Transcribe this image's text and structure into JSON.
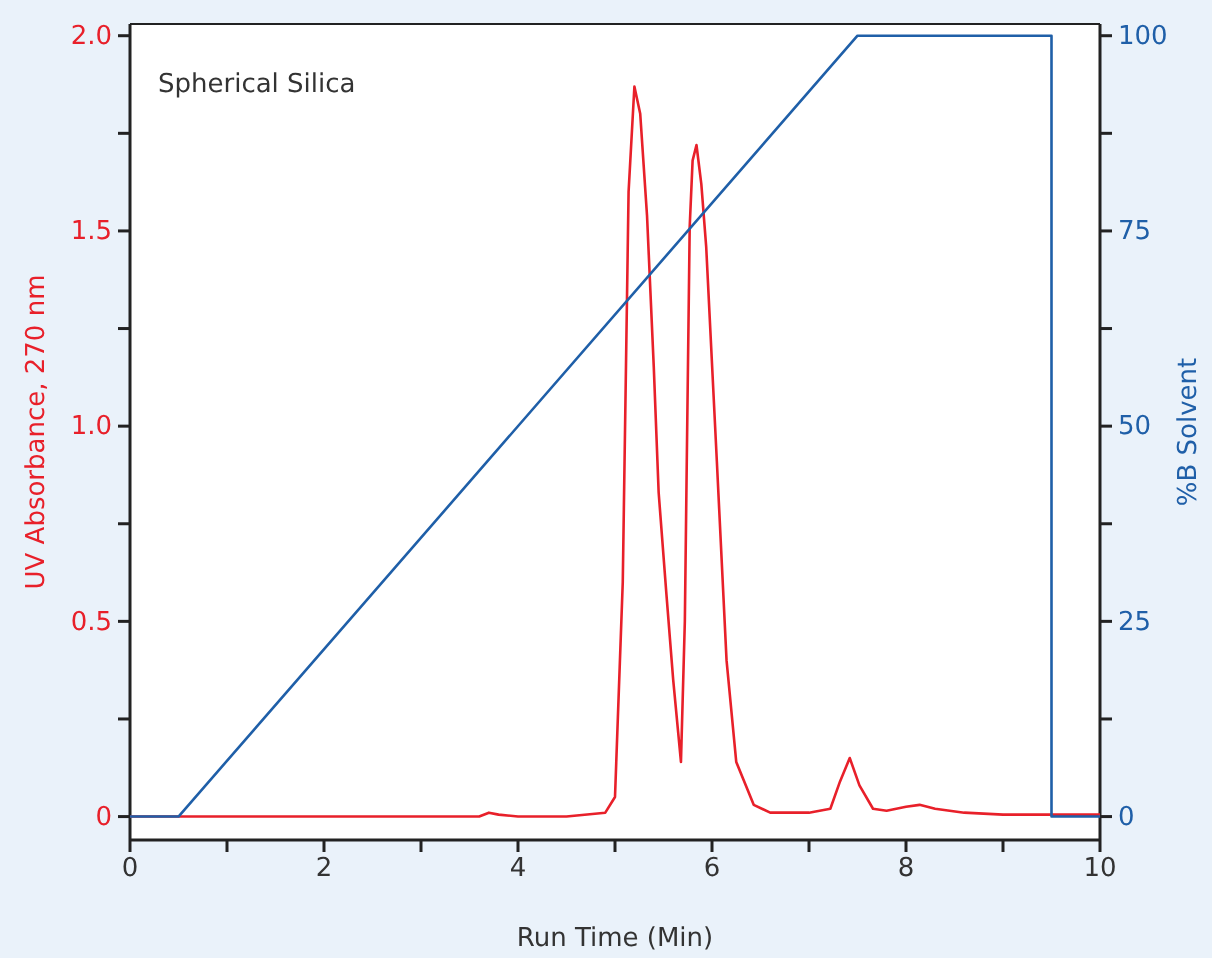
{
  "chart_data": {
    "type": "line",
    "xlabel": "Run Time (Min)",
    "ylabel": "UV Absorbance, 270 nm",
    "y2label": "%B Solvent",
    "annotations": [
      "Spherical Silica"
    ],
    "xlim": [
      0,
      10
    ],
    "xticks": [
      0,
      {
        "value": 1,
        "label": null
      },
      2,
      {
        "value": 3,
        "label": null
      },
      4,
      {
        "value": 5,
        "label": null
      },
      6,
      {
        "value": 7,
        "label": null
      },
      8,
      {
        "value": 9,
        "label": null
      },
      10
    ],
    "ylim": [
      -0.06,
      2.03
    ],
    "yticks": [
      0,
      {
        "value": 0.25,
        "label": null
      },
      0.5,
      {
        "value": 0.75,
        "label": null
      },
      {
        "value": 1,
        "label": "1.0"
      },
      {
        "value": 1.25,
        "label": null
      },
      1.5,
      {
        "value": 1.75,
        "label": null
      },
      {
        "value": 2,
        "label": "2.0"
      }
    ],
    "y2lim": [
      -3,
      101.5
    ],
    "y2ticks": [
      0,
      {
        "value": 12.5,
        "label": null
      },
      25,
      {
        "value": 37.5,
        "label": null
      },
      50,
      {
        "value": 62.5,
        "label": null
      },
      75,
      {
        "value": 87.5,
        "label": null
      },
      100
    ],
    "grid": false,
    "marker": "none",
    "line_style": "solid",
    "series": [
      {
        "color": "#e8202a",
        "x": [
          0,
          1,
          2,
          3,
          3.6,
          3.7,
          3.8,
          4,
          4.5,
          4.9,
          5.0,
          5.08,
          5.14,
          5.2,
          5.26,
          5.33,
          5.4,
          5.45,
          5.53,
          5.6,
          5.68,
          5.72,
          5.74,
          5.77,
          5.8,
          5.84,
          5.89,
          5.94,
          6.05,
          6.15,
          6.25,
          6.43,
          6.6,
          7,
          7.22,
          7.32,
          7.42,
          7.52,
          7.66,
          7.8,
          8.0,
          8.14,
          8.3,
          8.6,
          9,
          10
        ],
        "values": [
          0,
          0,
          0,
          0,
          0,
          0.01,
          0.005,
          0,
          0,
          0.01,
          0.05,
          0.6,
          1.6,
          1.87,
          1.8,
          1.54,
          1.15,
          0.83,
          0.57,
          0.35,
          0.14,
          0.5,
          0.91,
          1.51,
          1.68,
          1.72,
          1.62,
          1.46,
          0.91,
          0.4,
          0.14,
          0.03,
          0.01,
          0.01,
          0.02,
          0.09,
          0.15,
          0.08,
          0.02,
          0.015,
          0.025,
          0.03,
          0.02,
          0.01,
          0.005,
          0.005
        ]
      },
      {
        "color": "#1f5fa8",
        "axis": "y2",
        "x": [
          0,
          0.5,
          7.5,
          9.5,
          9.5,
          10
        ],
        "values": [
          0,
          0,
          100,
          100,
          0,
          0
        ]
      }
    ]
  }
}
